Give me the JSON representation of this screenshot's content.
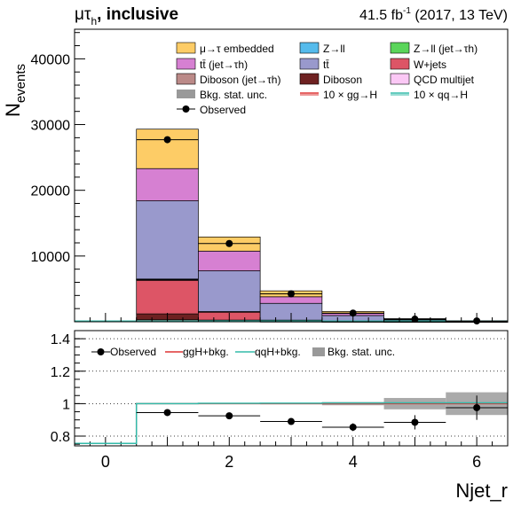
{
  "header": {
    "channel": "μτ",
    "channel_sub": "h",
    "suffix": ", inclusive",
    "lumi": "41.5 fb",
    "lumi_exp": "-1",
    "lumi_tail": " (2017, 13 TeV)"
  },
  "chart_data": {
    "type": "bar",
    "stacked": true,
    "x_label": "Njet_r",
    "y_label_main": "N",
    "y_label_sub": "events",
    "categories": [
      0,
      1,
      2,
      3,
      4,
      5,
      6
    ],
    "xlim": [
      -0.5,
      6.5
    ],
    "x_ticks": [
      0,
      2,
      4,
      6
    ],
    "ylim_main": [
      0,
      44500
    ],
    "y_ticks_main": [
      10000,
      20000,
      30000,
      40000
    ],
    "series": [
      {
        "name": "Diboson (jet→τh)",
        "color": "#bb8a88",
        "values": [
          0,
          300,
          60,
          20,
          5,
          2,
          1
        ]
      },
      {
        "name": "Diboson",
        "color": "#6e2121",
        "values": [
          0,
          900,
          200,
          50,
          15,
          5,
          2
        ]
      },
      {
        "name": "W+jets",
        "color": "#dd5566",
        "values": [
          0,
          5100,
          1200,
          150,
          40,
          10,
          3
        ]
      },
      {
        "name": "QCD multijet",
        "color": "#fbc8f5",
        "values": [
          0,
          100,
          50,
          20,
          5,
          2,
          1
        ]
      },
      {
        "name": "Z→ll (jet→τh)",
        "color": "#5ad55a",
        "values": [
          0,
          50,
          20,
          5,
          2,
          1,
          0
        ]
      },
      {
        "name": "Z→ll",
        "color": "#55bbec",
        "values": [
          0,
          50,
          20,
          5,
          2,
          1,
          0
        ]
      },
      {
        "name": "tt̄",
        "color": "#9999cc",
        "values": [
          0,
          11900,
          6200,
          2550,
          880,
          270,
          93
        ]
      },
      {
        "name": "tt̄ (jet→τh)",
        "color": "#d680d2",
        "values": [
          0,
          4900,
          3000,
          1000,
          310,
          80,
          25
        ]
      },
      {
        "name": "μ→τ embedded",
        "color": "#fdcc66",
        "values": [
          0,
          6000,
          2150,
          900,
          300,
          100,
          30
        ]
      }
    ],
    "observed": [
      0,
      27700,
      11900,
      4250,
      1320,
      400,
      125
    ],
    "signal_legend": [
      "10 × gg→H",
      "10 × qq→H"
    ],
    "signal_colors": [
      "#dd3333",
      "#33bbaa"
    ],
    "unc_legend": "Bkg. stat. unc.",
    "observed_legend": "Observed",
    "ratio": {
      "ylim": [
        0.74,
        1.45
      ],
      "y_ticks": [
        0.8,
        1,
        1.2,
        1.4
      ],
      "y_tick_labels": [
        "0.8",
        "1",
        "1.2",
        "1.4"
      ],
      "dotted_lines": [
        0.8,
        1.0,
        1.2,
        1.4
      ],
      "observed": [
        null,
        0.945,
        0.925,
        0.89,
        0.855,
        0.885,
        0.975
      ],
      "observed_err": [
        0,
        0.004,
        0.008,
        0.014,
        0.024,
        0.044,
        0.075
      ],
      "unc": [
        0,
        0.002,
        0.003,
        0.004,
        0.01,
        0.035,
        0.07
      ],
      "ggH_ratio": [
        0.755,
        1.0,
        1.0,
        1.0,
        1.0,
        1.0,
        1.0
      ],
      "qqH_ratio": [
        0.755,
        1.0,
        1.002,
        1.003,
        1.004,
        1.005,
        1.005
      ],
      "legend": [
        "Observed",
        "ggH+bkg.",
        "qqH+bkg.",
        "Bkg. stat. unc."
      ]
    }
  }
}
